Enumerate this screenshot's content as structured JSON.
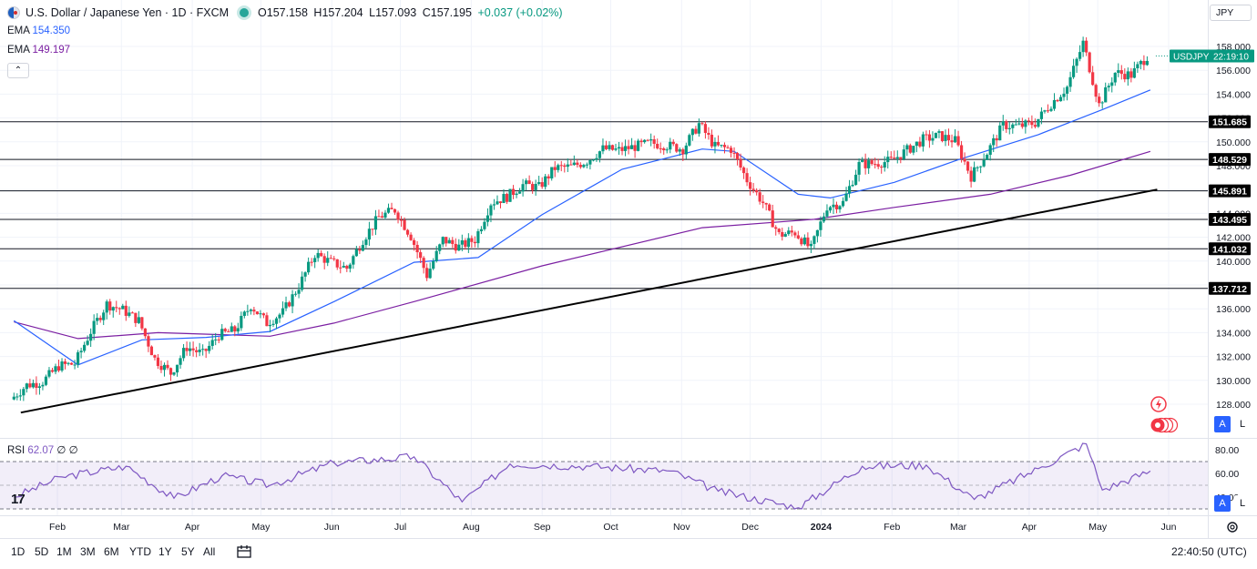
{
  "header": {
    "title": "U.S. Dollar / Japanese Yen · 1D · FXCM",
    "open": "O157.158",
    "high": "H157.204",
    "low": "L157.093",
    "close": "C157.195",
    "change": "+0.037 (+0.02%)"
  },
  "indicators": {
    "ema_fast_label": "EMA",
    "ema_fast_value": "154.350",
    "ema_slow_label": "EMA",
    "ema_slow_value": "149.197",
    "rsi_label": "RSI",
    "rsi_value": "62.07",
    "rsi_extra": "∅ ∅"
  },
  "currency_button": "JPY",
  "price_tag": {
    "symbol": "USDJPY",
    "countdown": "22:19:10"
  },
  "timeframes": [
    "1D",
    "5D",
    "1M",
    "3M",
    "6M",
    "YTD",
    "1Y",
    "5Y",
    "All"
  ],
  "clock": "22:40:50 (UTC)",
  "auto_label": "A",
  "log_label": "L",
  "colors": {
    "up": "#089981",
    "down": "#f23645",
    "ema_fast": "#2962ff",
    "ema_slow": "#7b1fa2",
    "rsi": "#7e57c2"
  },
  "chart_data": [
    {
      "type": "candlestick",
      "title": "U.S. Dollar / Japanese Yen · 1D · FXCM",
      "y_ticks": [
        128,
        130,
        132,
        134,
        136,
        138,
        140,
        142,
        144,
        146,
        148,
        150,
        152,
        154,
        156,
        158
      ],
      "y_tick_labels": [
        "128.000",
        "130.000",
        "132.000",
        "134.000",
        "136.000",
        "138.000",
        "140.000",
        "142.000",
        "144.000",
        "146.000",
        "148.000",
        "150.000",
        "152.000",
        "154.000",
        "156.000",
        "158.000"
      ],
      "ylim": [
        126.5,
        160.5
      ],
      "x_labels": [
        "Feb",
        "Mar",
        "Apr",
        "May",
        "Jun",
        "Jul",
        "Aug",
        "Sep",
        "Oct",
        "Nov",
        "Dec",
        "2024",
        "Feb",
        "Mar",
        "Apr",
        "May",
        "Jun"
      ],
      "close_series": [
        {
          "date": "2023-01-13",
          "close": 128.4
        },
        {
          "date": "2023-01-20",
          "close": 129.6
        },
        {
          "date": "2023-01-27",
          "close": 129.9
        },
        {
          "date": "2023-02-03",
          "close": 131.2
        },
        {
          "date": "2023-02-10",
          "close": 131.4
        },
        {
          "date": "2023-02-17",
          "close": 134.1
        },
        {
          "date": "2023-02-24",
          "close": 136.4
        },
        {
          "date": "2023-03-03",
          "close": 135.9
        },
        {
          "date": "2023-03-10",
          "close": 135.0
        },
        {
          "date": "2023-03-17",
          "close": 131.8
        },
        {
          "date": "2023-03-24",
          "close": 130.6
        },
        {
          "date": "2023-03-31",
          "close": 132.8
        },
        {
          "date": "2023-04-07",
          "close": 132.2
        },
        {
          "date": "2023-04-14",
          "close": 133.8
        },
        {
          "date": "2023-04-21",
          "close": 134.2
        },
        {
          "date": "2023-04-28",
          "close": 136.3
        },
        {
          "date": "2023-05-05",
          "close": 134.8
        },
        {
          "date": "2023-05-12",
          "close": 135.7
        },
        {
          "date": "2023-05-19",
          "close": 137.9
        },
        {
          "date": "2023-05-26",
          "close": 140.6
        },
        {
          "date": "2023-06-02",
          "close": 139.9
        },
        {
          "date": "2023-06-09",
          "close": 139.4
        },
        {
          "date": "2023-06-16",
          "close": 141.8
        },
        {
          "date": "2023-06-23",
          "close": 143.7
        },
        {
          "date": "2023-06-30",
          "close": 144.3
        },
        {
          "date": "2023-07-07",
          "close": 142.1
        },
        {
          "date": "2023-07-14",
          "close": 138.8
        },
        {
          "date": "2023-07-21",
          "close": 141.8
        },
        {
          "date": "2023-07-28",
          "close": 141.2
        },
        {
          "date": "2023-08-04",
          "close": 141.8
        },
        {
          "date": "2023-08-11",
          "close": 144.9
        },
        {
          "date": "2023-08-18",
          "close": 145.4
        },
        {
          "date": "2023-08-25",
          "close": 146.4
        },
        {
          "date": "2023-09-01",
          "close": 146.2
        },
        {
          "date": "2023-09-08",
          "close": 147.8
        },
        {
          "date": "2023-09-15",
          "close": 147.9
        },
        {
          "date": "2023-09-22",
          "close": 148.4
        },
        {
          "date": "2023-09-29",
          "close": 149.4
        },
        {
          "date": "2023-10-06",
          "close": 149.3
        },
        {
          "date": "2023-10-13",
          "close": 149.6
        },
        {
          "date": "2023-10-20",
          "close": 149.9
        },
        {
          "date": "2023-10-27",
          "close": 149.7
        },
        {
          "date": "2023-11-03",
          "close": 149.4
        },
        {
          "date": "2023-11-10",
          "close": 151.5
        },
        {
          "date": "2023-11-17",
          "close": 149.6
        },
        {
          "date": "2023-11-24",
          "close": 149.4
        },
        {
          "date": "2023-12-01",
          "close": 146.8
        },
        {
          "date": "2023-12-08",
          "close": 144.9
        },
        {
          "date": "2023-12-15",
          "close": 142.2
        },
        {
          "date": "2023-12-22",
          "close": 142.4
        },
        {
          "date": "2023-12-29",
          "close": 141.0
        },
        {
          "date": "2024-01-05",
          "close": 144.6
        },
        {
          "date": "2024-01-12",
          "close": 144.9
        },
        {
          "date": "2024-01-19",
          "close": 148.1
        },
        {
          "date": "2024-01-26",
          "close": 148.2
        },
        {
          "date": "2024-02-02",
          "close": 148.4
        },
        {
          "date": "2024-02-09",
          "close": 149.3
        },
        {
          "date": "2024-02-16",
          "close": 150.2
        },
        {
          "date": "2024-02-23",
          "close": 150.5
        },
        {
          "date": "2024-03-01",
          "close": 150.1
        },
        {
          "date": "2024-03-08",
          "close": 147.1
        },
        {
          "date": "2024-03-15",
          "close": 149.1
        },
        {
          "date": "2024-03-22",
          "close": 151.4
        },
        {
          "date": "2024-03-29",
          "close": 151.3
        },
        {
          "date": "2024-04-05",
          "close": 151.6
        },
        {
          "date": "2024-04-12",
          "close": 153.2
        },
        {
          "date": "2024-04-19",
          "close": 154.6
        },
        {
          "date": "2024-04-26",
          "close": 158.3
        },
        {
          "date": "2024-05-03",
          "close": 153.1
        },
        {
          "date": "2024-05-10",
          "close": 155.8
        },
        {
          "date": "2024-05-17",
          "close": 155.6
        },
        {
          "date": "2024-05-24",
          "close": 157.2
        }
      ],
      "ema_fast_series": [
        {
          "date": "2023-01-13",
          "value": 135.0
        },
        {
          "date": "2023-02-10",
          "value": 131.3
        },
        {
          "date": "2023-03-10",
          "value": 133.4
        },
        {
          "date": "2023-04-07",
          "value": 133.6
        },
        {
          "date": "2023-05-05",
          "value": 134.1
        },
        {
          "date": "2023-06-02",
          "value": 136.6
        },
        {
          "date": "2023-07-07",
          "value": 139.9
        },
        {
          "date": "2023-08-04",
          "value": 140.3
        },
        {
          "date": "2023-09-01",
          "value": 143.9
        },
        {
          "date": "2023-10-06",
          "value": 147.7
        },
        {
          "date": "2023-11-10",
          "value": 149.4
        },
        {
          "date": "2023-11-24",
          "value": 149.2
        },
        {
          "date": "2023-12-22",
          "value": 145.6
        },
        {
          "date": "2024-01-05",
          "value": 145.3
        },
        {
          "date": "2024-02-02",
          "value": 146.6
        },
        {
          "date": "2024-03-01",
          "value": 148.5
        },
        {
          "date": "2024-04-05",
          "value": 150.6
        },
        {
          "date": "2024-05-03",
          "value": 152.7
        },
        {
          "date": "2024-05-24",
          "value": 154.35
        }
      ],
      "ema_slow_series": [
        {
          "date": "2023-01-13",
          "value": 134.9
        },
        {
          "date": "2023-02-10",
          "value": 133.5
        },
        {
          "date": "2023-03-17",
          "value": 134.0
        },
        {
          "date": "2023-05-05",
          "value": 133.7
        },
        {
          "date": "2023-06-02",
          "value": 134.8
        },
        {
          "date": "2023-07-07",
          "value": 136.6
        },
        {
          "date": "2023-09-01",
          "value": 139.6
        },
        {
          "date": "2023-11-10",
          "value": 142.8
        },
        {
          "date": "2023-12-29",
          "value": 143.5
        },
        {
          "date": "2024-02-02",
          "value": 144.5
        },
        {
          "date": "2024-03-15",
          "value": 145.6
        },
        {
          "date": "2024-04-19",
          "value": 147.2
        },
        {
          "date": "2024-05-24",
          "value": 149.197
        }
      ],
      "horizontal_levels": [
        151.685,
        148.529,
        145.891,
        143.495,
        141.032,
        137.712
      ],
      "horizontal_level_labels": [
        "151.685",
        "148.529",
        "145.891",
        "143.495",
        "141.032",
        "137.712"
      ],
      "trendline": [
        {
          "date": "2023-01-16",
          "value": 127.3
        },
        {
          "date": "2024-05-27",
          "value": 146.0
        }
      ],
      "last_price": "157.195"
    },
    {
      "type": "line",
      "title": "RSI",
      "y_ticks": [
        40,
        60,
        80
      ],
      "y_tick_labels": [
        "40.00",
        "60.00",
        "80.00"
      ],
      "ylim": [
        31,
        84
      ],
      "band": [
        30,
        70
      ],
      "midline": 50,
      "series": [
        {
          "date": "2023-01-13",
          "value": 40
        },
        {
          "date": "2023-02-03",
          "value": 57
        },
        {
          "date": "2023-03-03",
          "value": 66
        },
        {
          "date": "2023-03-24",
          "value": 39
        },
        {
          "date": "2023-04-14",
          "value": 58
        },
        {
          "date": "2023-05-05",
          "value": 50
        },
        {
          "date": "2023-06-02",
          "value": 69
        },
        {
          "date": "2023-07-07",
          "value": 74
        },
        {
          "date": "2023-07-28",
          "value": 36
        },
        {
          "date": "2023-08-18",
          "value": 68
        },
        {
          "date": "2023-09-22",
          "value": 66
        },
        {
          "date": "2023-10-27",
          "value": 62
        },
        {
          "date": "2023-11-17",
          "value": 45
        },
        {
          "date": "2023-12-22",
          "value": 31
        },
        {
          "date": "2024-01-19",
          "value": 66
        },
        {
          "date": "2024-02-16",
          "value": 67
        },
        {
          "date": "2024-03-08",
          "value": 38
        },
        {
          "date": "2024-04-05",
          "value": 64
        },
        {
          "date": "2024-04-26",
          "value": 85
        },
        {
          "date": "2024-05-03",
          "value": 46
        },
        {
          "date": "2024-05-24",
          "value": 62
        }
      ]
    }
  ]
}
